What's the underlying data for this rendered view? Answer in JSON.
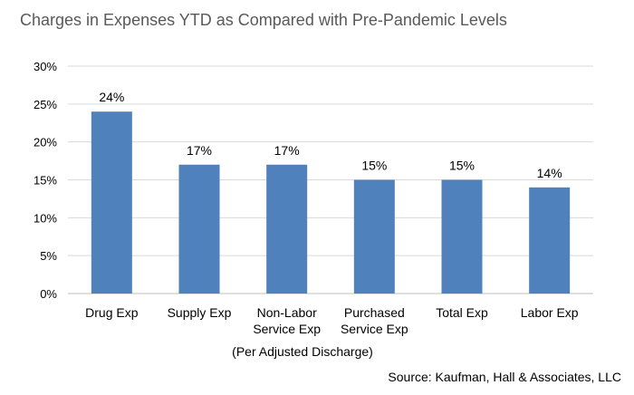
{
  "title": "Charges in Expenses YTD as Compared with Pre-Pandemic Levels",
  "x_note": "(Per Adjusted Discharge)",
  "source": "Source: Kaufman, Hall & Associates, LLC",
  "chart_data": {
    "type": "bar",
    "title": "Charges in Expenses YTD as Compared with Pre-Pandemic Levels",
    "categories": [
      "Drug Exp",
      "Supply Exp",
      "Non-Labor Service Exp",
      "Purchased Service Exp",
      "Total Exp",
      "Labor Exp"
    ],
    "category_lines": [
      [
        "Drug Exp"
      ],
      [
        "Supply Exp"
      ],
      [
        "Non-Labor",
        "Service Exp"
      ],
      [
        "Purchased",
        "Service Exp"
      ],
      [
        "Total Exp"
      ],
      [
        "Labor Exp"
      ]
    ],
    "values": [
      24,
      17,
      17,
      15,
      15,
      14
    ],
    "data_labels": [
      "24%",
      "17%",
      "17%",
      "15%",
      "15%",
      "14%"
    ],
    "ylim": [
      0,
      30
    ],
    "yticks": [
      0,
      5,
      10,
      15,
      20,
      25,
      30
    ],
    "ytick_labels": [
      "0%",
      "5%",
      "10%",
      "15%",
      "20%",
      "25%",
      "30%"
    ],
    "grid": true,
    "legend": "none",
    "colors": {
      "bar": "#4F81BD",
      "grid": "#D9D9D9",
      "text": "#000000",
      "title": "#595959"
    }
  }
}
